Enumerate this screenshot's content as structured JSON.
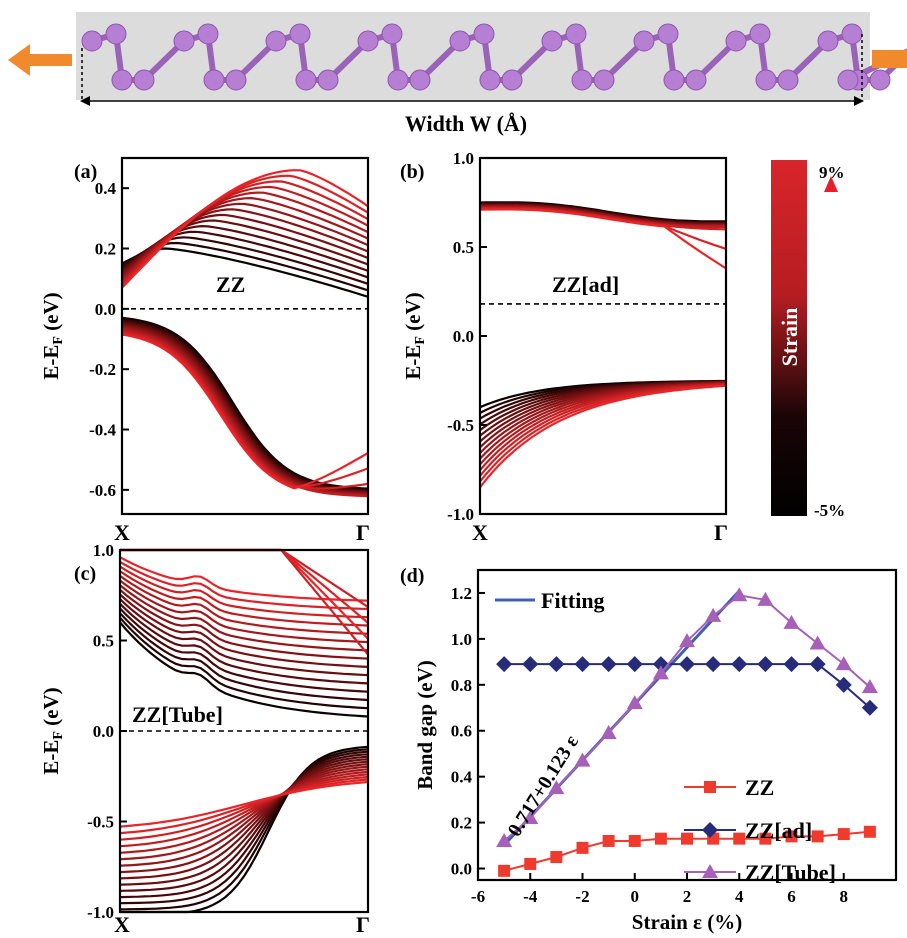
{
  "top_schematic": {
    "width_label": "Width W (Å)",
    "atom_color": "#b77fd4",
    "arrow_color": "#f08a2c"
  },
  "colorbar": {
    "label": "Strain",
    "top_label": "9%",
    "bottom_label": "-5%",
    "colors": [
      "#e81f2a",
      "#000000"
    ]
  },
  "chart_data": [
    {
      "panel": "(a)",
      "type": "line",
      "annotation": "ZZ",
      "ylabel": "E-E",
      "ylabel_sub": "F",
      "ylabel_unit": " (eV)",
      "xticks": [
        "X",
        "Γ"
      ],
      "ylim": [
        -0.68,
        0.5
      ],
      "yticks": [
        -0.6,
        -0.4,
        -0.2,
        0.0,
        0.2,
        0.4
      ],
      "fermi_level": 0.0,
      "strains": [
        -5,
        -4,
        -3,
        -2,
        -1,
        0,
        1,
        2,
        3,
        4,
        5,
        6,
        7,
        8,
        9
      ],
      "note": "conduction and valence bands, black (-5%) to red (9%)"
    },
    {
      "panel": "(b)",
      "type": "line",
      "annotation": "ZZ[ad]",
      "ylabel": "E-E",
      "ylabel_sub": "F",
      "ylabel_unit": " (eV)",
      "xticks": [
        "X",
        "Γ"
      ],
      "ylim": [
        -1.0,
        1.0
      ],
      "yticks": [
        -1.0,
        -0.5,
        0.0,
        0.5,
        1.0
      ],
      "fermi_level": 0.18,
      "strains": [
        -5,
        -4,
        -3,
        -2,
        -1,
        0,
        1,
        2,
        3,
        4,
        5,
        6,
        7,
        8,
        9
      ]
    },
    {
      "panel": "(c)",
      "type": "line",
      "annotation": "ZZ[Tube]",
      "ylabel": "E-E",
      "ylabel_sub": "F",
      "ylabel_unit": " (eV)",
      "xticks": [
        "X",
        "Γ"
      ],
      "ylim": [
        -1.0,
        1.0
      ],
      "yticks": [
        -1.0,
        -0.5,
        0.0,
        0.5,
        1.0
      ],
      "fermi_level": 0.0,
      "strains": [
        -5,
        -4,
        -3,
        -2,
        -1,
        0,
        1,
        2,
        3,
        4,
        5,
        6,
        7,
        8,
        9
      ]
    },
    {
      "panel": "(d)",
      "type": "line",
      "xlabel": "Strain ε (%)",
      "ylabel": "Band gap (eV)",
      "xlim": [
        -6,
        10
      ],
      "ylim": [
        -0.05,
        1.3
      ],
      "xticks": [
        -6,
        -4,
        -2,
        0,
        2,
        4,
        6,
        8
      ],
      "yticks": [
        0.0,
        0.2,
        0.4,
        0.6,
        0.8,
        1.0,
        1.2
      ],
      "fit_annotation": "0.717+0.123 ε",
      "x": [
        -5,
        -4,
        -3,
        -2,
        -1,
        0,
        1,
        2,
        3,
        4,
        5,
        6,
        7,
        8,
        9
      ],
      "series": [
        {
          "name": "ZZ",
          "marker": "square",
          "color": "#f03a2e",
          "values": [
            -0.01,
            0.02,
            0.05,
            0.09,
            0.12,
            0.12,
            0.13,
            0.13,
            0.13,
            0.13,
            0.13,
            0.14,
            0.14,
            0.15,
            0.16
          ]
        },
        {
          "name": "ZZ[ad]",
          "marker": "diamond",
          "color": "#262c7a",
          "values": [
            0.89,
            0.89,
            0.89,
            0.89,
            0.89,
            0.89,
            0.89,
            0.89,
            0.89,
            0.89,
            0.89,
            0.89,
            0.89,
            0.8,
            0.7
          ]
        },
        {
          "name": "ZZ[Tube]",
          "marker": "triangle",
          "color": "#a760b8",
          "values": [
            0.12,
            0.22,
            0.35,
            0.47,
            0.59,
            0.72,
            0.85,
            0.99,
            1.1,
            1.19,
            1.17,
            1.07,
            0.98,
            0.89,
            0.79
          ]
        }
      ],
      "fit": {
        "name": "Fitting",
        "color": "#3f5fb0",
        "intercept": 0.717,
        "slope": 0.123,
        "x_range": [
          -5,
          4
        ]
      }
    }
  ]
}
